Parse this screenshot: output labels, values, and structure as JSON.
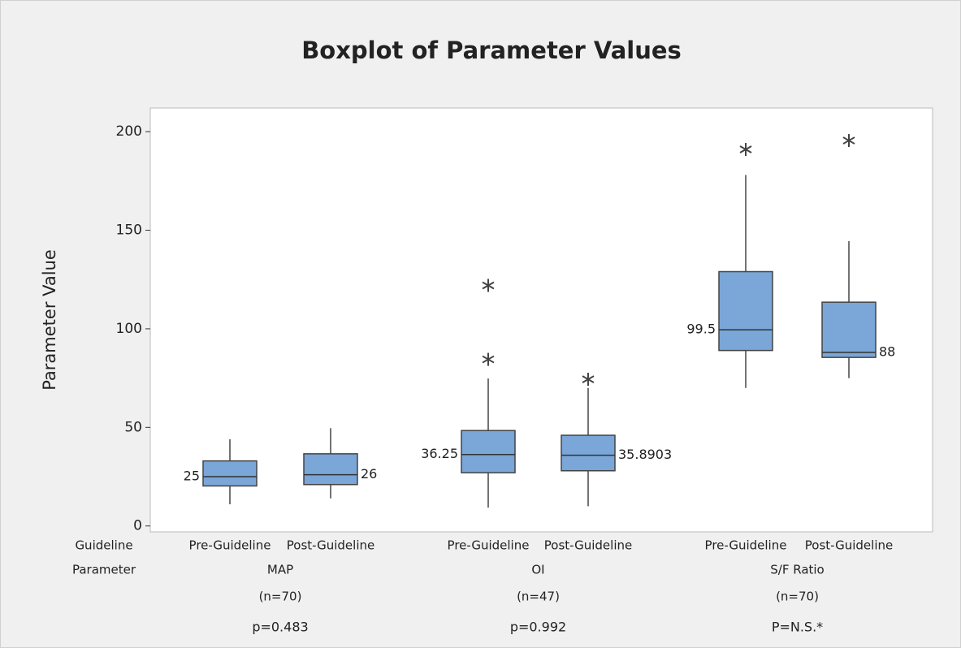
{
  "chart_data": {
    "type": "box",
    "title": "Boxplot of Parameter Values",
    "ylabel": "Parameter Value",
    "ylim": [
      -3,
      212
    ],
    "yticks": [
      0,
      50,
      100,
      150,
      200
    ],
    "row_labels": [
      "Guideline",
      "Parameter"
    ],
    "color": "#7aa6d8",
    "groups": [
      {
        "name": "MAP",
        "n": "(n=70)",
        "p": "p=0.483",
        "boxes": [
          {
            "name": "Pre-Guideline",
            "low": 11,
            "q1": 20.3,
            "median": 25,
            "q3": 33,
            "high": 44,
            "outliers": []
          },
          {
            "name": "Post-Guideline",
            "low": 14,
            "q1": 21,
            "median": 26,
            "q3": 36.6,
            "high": 49.6,
            "outliers": []
          }
        ]
      },
      {
        "name": "OI",
        "n": "(n=47)",
        "p": "p=0.992",
        "boxes": [
          {
            "name": "Pre-Guideline",
            "low": 9.3,
            "q1": 27,
            "median": 36.25,
            "q3": 48.4,
            "high": 74.8,
            "outliers": [
              84.5,
              122
            ]
          },
          {
            "name": "Post-Guideline",
            "low": 10,
            "q1": 28,
            "median": 35.8903,
            "q3": 46,
            "high": 70,
            "outliers": [
              74.4
            ]
          }
        ]
      },
      {
        "name": "S/F Ratio",
        "n": "(n=70)",
        "p": "P=N.S.*",
        "boxes": [
          {
            "name": "Pre-Guideline",
            "low": 70,
            "q1": 89,
            "median": 99.5,
            "q3": 129,
            "high": 178,
            "outliers": [
              191
            ]
          },
          {
            "name": "Post-Guideline",
            "low": 75,
            "q1": 85.5,
            "median": 88,
            "q3": 113.5,
            "high": 144.5,
            "outliers": [
              195.5
            ]
          }
        ]
      }
    ]
  }
}
